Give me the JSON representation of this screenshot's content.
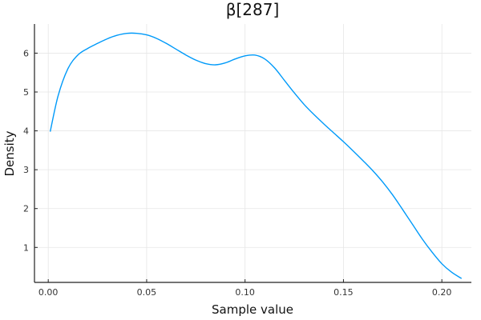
{
  "chart_data": {
    "type": "line",
    "title": "β[287]",
    "xlabel": "Sample value",
    "ylabel": "Density",
    "xlim": [
      -0.007,
      0.215
    ],
    "ylim": [
      0.1,
      6.75
    ],
    "x_ticks": [
      0.0,
      0.05,
      0.1,
      0.15,
      0.2
    ],
    "x_tick_labels": [
      "0.00",
      "0.05",
      "0.10",
      "0.15",
      "0.20"
    ],
    "y_ticks": [
      1,
      2,
      3,
      4,
      5,
      6
    ],
    "y_tick_labels": [
      "1",
      "2",
      "3",
      "4",
      "5",
      "6"
    ],
    "grid": true,
    "legend": "none",
    "series": [
      {
        "color": "#009af9",
        "x": [
          0.001,
          0.005,
          0.01,
          0.015,
          0.02,
          0.025,
          0.03,
          0.035,
          0.04,
          0.045,
          0.05,
          0.055,
          0.06,
          0.065,
          0.07,
          0.075,
          0.08,
          0.085,
          0.09,
          0.095,
          0.1,
          0.105,
          0.11,
          0.115,
          0.12,
          0.125,
          0.13,
          0.135,
          0.14,
          0.145,
          0.15,
          0.155,
          0.16,
          0.165,
          0.17,
          0.175,
          0.18,
          0.185,
          0.19,
          0.195,
          0.2,
          0.205,
          0.21
        ],
        "y": [
          3.98,
          4.9,
          5.6,
          5.95,
          6.12,
          6.25,
          6.37,
          6.46,
          6.51,
          6.51,
          6.47,
          6.38,
          6.25,
          6.1,
          5.95,
          5.82,
          5.73,
          5.7,
          5.75,
          5.85,
          5.93,
          5.95,
          5.85,
          5.62,
          5.3,
          4.98,
          4.68,
          4.42,
          4.18,
          3.95,
          3.72,
          3.48,
          3.23,
          2.97,
          2.68,
          2.35,
          1.98,
          1.6,
          1.22,
          0.88,
          0.58,
          0.36,
          0.2
        ]
      }
    ]
  }
}
